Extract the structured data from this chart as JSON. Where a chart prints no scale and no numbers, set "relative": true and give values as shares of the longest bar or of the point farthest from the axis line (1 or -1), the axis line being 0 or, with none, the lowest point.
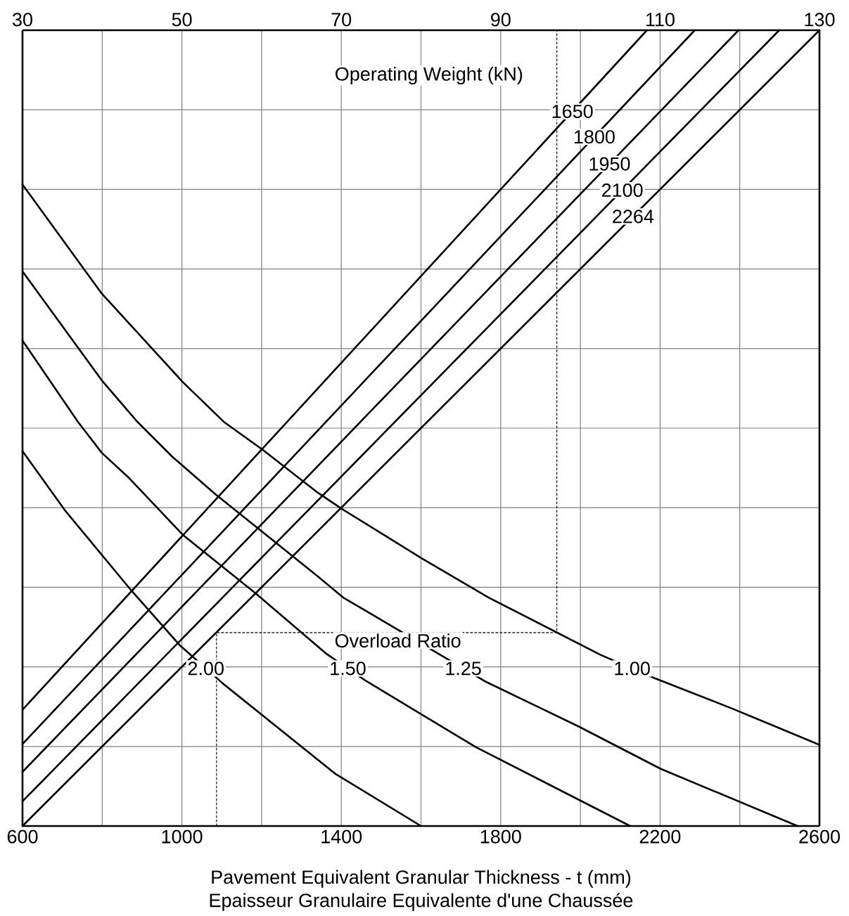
{
  "chart_data": {
    "type": "line",
    "xlabel": "Pavement Equivalent Granular Thickness - t (mm)",
    "relative": true,
    "xlim": [
      600,
      2600
    ],
    "xticks": [
      600,
      1000,
      1400,
      1800,
      2200,
      2600
    ],
    "x2lim": [
      30,
      130
    ],
    "x2ticks": [
      30,
      50,
      70,
      90,
      110,
      130
    ],
    "grid": true,
    "legend": false,
    "marker": "none",
    "annotations": [
      "Operating Weight (kN)",
      "Overload Ratio",
      "Epaisseur Granulaire Equivalente d'une Chaussée"
    ],
    "series": [
      {
        "name": "1650",
        "color": "#000000",
        "x": [
          600,
          2167
        ],
        "values": [
          0.146,
          1
        ]
      },
      {
        "name": "1800",
        "color": "#000000",
        "x": [
          600,
          2287
        ],
        "values": [
          0.103,
          1
        ]
      },
      {
        "name": "1950",
        "color": "#000000",
        "x": [
          600,
          2397
        ],
        "values": [
          0.068,
          1
        ]
      },
      {
        "name": "2100",
        "color": "#000000",
        "x": [
          600,
          2499
        ],
        "values": [
          0.031,
          1
        ]
      },
      {
        "name": "2264",
        "color": "#000000",
        "x": [
          600,
          2600
        ],
        "values": [
          0,
          1
        ]
      },
      {
        "name": "1.00",
        "color": "#000000",
        "x": [
          600,
          799,
          1002,
          1105,
          1202,
          1338,
          1400,
          1603,
          1770,
          2051,
          2190,
          2384,
          2600
        ],
        "values": [
          0.806,
          0.669,
          0.558,
          0.508,
          0.473,
          0.42,
          0.399,
          0.336,
          0.287,
          0.215,
          0.185,
          0.147,
          0.102
        ]
      },
      {
        "name": "1.25",
        "color": "#000000",
        "x": [
          600,
          799,
          888,
          976,
          1084,
          1338,
          1405,
          1534,
          1760,
          1996,
          2201,
          2545
        ],
        "values": [
          0.697,
          0.56,
          0.508,
          0.464,
          0.417,
          0.315,
          0.287,
          0.249,
          0.182,
          0.125,
          0.072,
          0
        ]
      },
      {
        "name": "1.50",
        "color": "#000000",
        "x": [
          600,
          739,
          799,
          868,
          1002,
          1186,
          1361,
          1463,
          1738,
          2125
        ],
        "values": [
          0.61,
          0.508,
          0.469,
          0.437,
          0.366,
          0.292,
          0.217,
          0.182,
          0.099,
          0
        ]
      },
      {
        "name": "2.00",
        "color": "#000000",
        "x": [
          600,
          706,
          868,
          995,
          1103,
          1384,
          1600
        ],
        "values": [
          0.471,
          0.397,
          0.299,
          0.227,
          0.179,
          0.066,
          0
        ]
      },
      {
        "color": "#000000",
        "line_style": "dashed",
        "x": [
          1087,
          1087,
          1941,
          1941
        ],
        "values": [
          0,
          0.243,
          0.243,
          1
        ]
      }
    ]
  }
}
